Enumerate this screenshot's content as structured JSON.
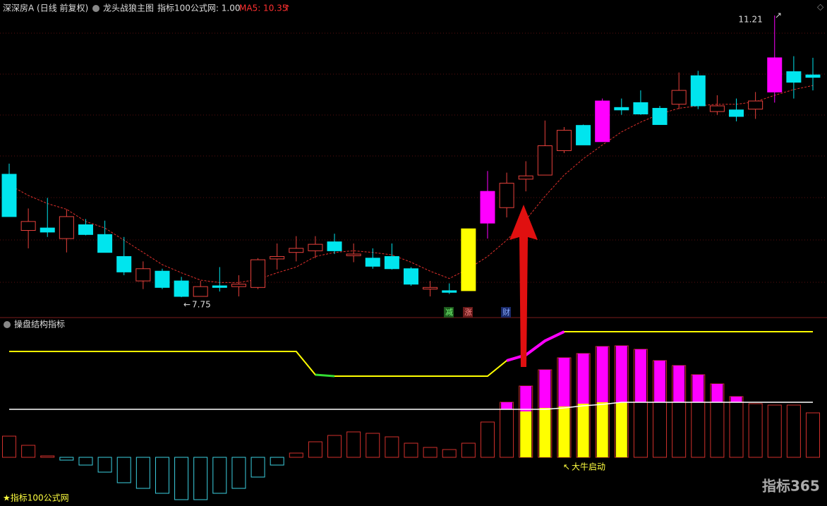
{
  "header": {
    "stock": "深深房A (日线 前复权)",
    "indicator": "龙头战狼主图",
    "param": "指标100公式网: 1.00",
    "ma_label": "MA5: 10.35"
  },
  "chart_data": [
    {
      "type": "candlestick",
      "ylim": [
        7.5,
        11.4
      ],
      "hollow_color": "#e8413c",
      "open": [
        9.26,
        8.57,
        8.6,
        8.47,
        8.64,
        8.52,
        8.25,
        7.95,
        8.07,
        7.95,
        7.76,
        7.89,
        7.88,
        7.87,
        8.22,
        8.3,
        8.32,
        8.43,
        8.26,
        8.23,
        8.25,
        8.1,
        7.85,
        7.83,
        7.83,
        8.66,
        8.85,
        9.2,
        9.25,
        9.55,
        9.86,
        9.66,
        10.08,
        10.14,
        10.07,
        10.12,
        10.47,
        10.03,
        10.05,
        10.06,
        10.27,
        10.52,
        10.48
      ],
      "high": [
        9.39,
        8.84,
        8.97,
        8.83,
        8.71,
        8.69,
        8.49,
        8.19,
        8.1,
        8.0,
        7.95,
        8.12,
        8.02,
        8.23,
        8.41,
        8.5,
        8.5,
        8.53,
        8.41,
        8.35,
        8.41,
        8.12,
        7.95,
        7.92,
        8.59,
        9.3,
        9.28,
        9.42,
        9.92,
        9.84,
        9.87,
        10.19,
        10.19,
        10.29,
        10.1,
        10.51,
        10.53,
        10.23,
        10.19,
        10.27,
        11.21,
        10.71,
        10.69
      ],
      "low": [
        8.74,
        8.35,
        8.49,
        8.3,
        8.51,
        8.3,
        8.02,
        7.85,
        7.85,
        7.75,
        7.76,
        7.82,
        7.76,
        7.85,
        8.09,
        8.19,
        8.23,
        8.28,
        8.18,
        8.1,
        8.09,
        7.89,
        7.76,
        7.79,
        7.83,
        8.47,
        8.73,
        9.05,
        9.25,
        9.52,
        9.62,
        9.66,
        9.99,
        9.99,
        9.87,
        10.06,
        10.06,
        9.99,
        9.91,
        9.94,
        10.14,
        10.19,
        10.29
      ],
      "close": [
        8.74,
        8.68,
        8.55,
        8.74,
        8.52,
        8.3,
        8.06,
        8.1,
        7.87,
        7.76,
        7.88,
        7.87,
        7.91,
        8.21,
        8.25,
        8.35,
        8.4,
        8.32,
        8.28,
        8.13,
        8.1,
        7.91,
        7.87,
        7.81,
        8.59,
        9.05,
        9.15,
        9.24,
        9.61,
        9.8,
        9.62,
        10.16,
        10.05,
        10.0,
        9.87,
        10.29,
        10.1,
        10.1,
        9.97,
        10.16,
        10.69,
        10.39,
        10.45
      ],
      "colors": [
        "#00e5ee",
        "#e8413c",
        "#00e5ee",
        "#e8413c",
        "#00e5ee",
        "#00e5ee",
        "#00e5ee",
        "#e8413c",
        "#00e5ee",
        "#00e5ee",
        "#e8413c",
        "#00e5ee",
        "#e8413c",
        "#e8413c",
        "#e8413c",
        "#e8413c",
        "#e8413c",
        "#00e5ee",
        "#e8413c",
        "#00e5ee",
        "#00e5ee",
        "#00e5ee",
        "#e8413c",
        "#00e5ee",
        "#ffff00",
        "#ff00ff",
        "#e8413c",
        "#e8413c",
        "#e8413c",
        "#e8413c",
        "#00e5ee",
        "#ff00ff",
        "#00e5ee",
        "#00e5ee",
        "#00e5ee",
        "#e8413c",
        "#00e5ee",
        "#e8413c",
        "#00e5ee",
        "#e8413c",
        "#ff00ff",
        "#00e5ee",
        "#00e5ee"
      ],
      "ma5": {
        "color": "#e0302c",
        "values": [
          9.13,
          9.0,
          8.9,
          8.83,
          8.68,
          8.6,
          8.45,
          8.3,
          8.15,
          8.05,
          7.96,
          7.93,
          7.93,
          7.97,
          8.05,
          8.12,
          8.25,
          8.3,
          8.32,
          8.3,
          8.27,
          8.18,
          8.07,
          7.98,
          8.1,
          8.25,
          8.45,
          8.7,
          8.99,
          9.25,
          9.45,
          9.62,
          9.78,
          9.9,
          10.0,
          10.07,
          10.1,
          10.12,
          10.12,
          10.15,
          10.23,
          10.3,
          10.35
        ]
      }
    },
    {
      "type": "indicator",
      "title": "操盘结构指标",
      "ylim": [
        -64,
        188
      ],
      "pos_color": "#d0302c",
      "neg_color": "#3ccfe0",
      "bars": [
        30,
        17,
        2,
        -4,
        -11,
        -21,
        -36,
        -44,
        -51,
        -60,
        -60,
        -51,
        -44,
        -28,
        -11,
        6,
        22,
        31,
        36,
        34,
        29,
        20,
        14,
        11,
        20,
        50,
        78,
        101,
        124,
        141,
        147,
        157,
        158,
        153,
        137,
        130,
        117,
        104,
        86,
        76,
        74,
        74,
        63
      ],
      "yellow_fill": {
        "color": "#ffff00",
        "values": [
          null,
          null,
          null,
          null,
          null,
          null,
          null,
          null,
          null,
          null,
          null,
          null,
          null,
          null,
          null,
          null,
          null,
          null,
          null,
          null,
          null,
          null,
          null,
          null,
          null,
          null,
          null,
          65,
          70,
          72,
          76,
          78,
          78,
          null,
          null,
          null,
          null,
          null,
          null,
          null,
          null,
          null,
          null
        ]
      },
      "magenta_from": {
        "color": "#ff00ff",
        "values": [
          null,
          null,
          null,
          null,
          null,
          null,
          null,
          null,
          null,
          null,
          null,
          null,
          null,
          null,
          null,
          null,
          null,
          null,
          null,
          null,
          null,
          null,
          null,
          null,
          null,
          null,
          68,
          65,
          70,
          72,
          76,
          78,
          78,
          78,
          78,
          78,
          78,
          78,
          78,
          null,
          null,
          null,
          null
        ]
      },
      "lines": [
        {
          "color": "#ffff00",
          "width": 2,
          "values": [
            150,
            150,
            150,
            150,
            150,
            150,
            150,
            150,
            150,
            150,
            150,
            150,
            150,
            150,
            150,
            150,
            117,
            115,
            115,
            115,
            115,
            115,
            115,
            115,
            115,
            115,
            137,
            145,
            165,
            178,
            178,
            178,
            178,
            178,
            178,
            178,
            178,
            178,
            178,
            178,
            178,
            178,
            178
          ]
        },
        {
          "color": "#33dd33",
          "width": 3,
          "values": [
            null,
            null,
            null,
            null,
            null,
            null,
            null,
            null,
            null,
            null,
            null,
            null,
            null,
            null,
            null,
            null,
            117,
            115,
            null,
            null,
            null,
            null,
            null,
            null,
            null,
            null,
            null,
            null,
            null,
            null,
            null,
            null,
            null,
            null,
            null,
            null,
            null,
            null,
            null,
            null,
            null,
            null,
            null
          ]
        },
        {
          "color": "#ff00ff",
          "width": 4,
          "values": [
            null,
            null,
            null,
            null,
            null,
            null,
            null,
            null,
            null,
            null,
            null,
            null,
            null,
            null,
            null,
            null,
            null,
            null,
            null,
            null,
            null,
            null,
            null,
            null,
            null,
            null,
            137,
            145,
            165,
            178,
            null,
            null,
            null,
            null,
            null,
            null,
            null,
            null,
            null,
            null,
            null,
            null,
            null
          ]
        },
        {
          "color": "#ffffff",
          "width": 1.5,
          "values": [
            68,
            68,
            68,
            68,
            68,
            68,
            68,
            68,
            68,
            68,
            68,
            68,
            68,
            68,
            68,
            68,
            68,
            68,
            68,
            68,
            68,
            68,
            68,
            68,
            68,
            68,
            68,
            68,
            68,
            70,
            73,
            75,
            78,
            78,
            78,
            78,
            78,
            78,
            78,
            78,
            78,
            78,
            78
          ]
        }
      ]
    }
  ],
  "signals": [
    "减",
    "涨",
    "财"
  ],
  "annotation": "大牛启动",
  "footer": "★指标100公式网",
  "watermark": "指标365"
}
